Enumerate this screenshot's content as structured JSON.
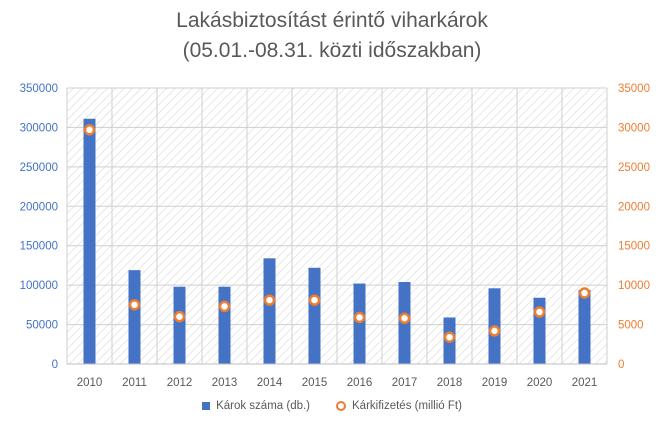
{
  "chart_data": {
    "type": "bar",
    "title_line1": "Lakásbiztosítást érintő viharkárok",
    "title_line2": "(05.01.-08.31. közti időszakban)",
    "categories": [
      "2010",
      "2011",
      "2012",
      "2013",
      "2014",
      "2015",
      "2016",
      "2017",
      "2018",
      "2019",
      "2020",
      "2021"
    ],
    "series": [
      {
        "name": "Károk száma (db.)",
        "type": "bar",
        "axis": "left",
        "color": "#4472c4",
        "values": [
          311000,
          119000,
          98000,
          98000,
          134000,
          122000,
          102000,
          104000,
          59000,
          96000,
          84000,
          94000
        ]
      },
      {
        "name": "Kárkifizetés (millió Ft)",
        "type": "scatter",
        "axis": "right",
        "color": "#ed7d31",
        "values": [
          29700,
          7500,
          6000,
          7300,
          8100,
          8100,
          5900,
          5800,
          3400,
          4200,
          6600,
          9000
        ]
      }
    ],
    "y_left": {
      "min": 0,
      "max": 350000,
      "ticks": [
        "0",
        "50000",
        "100000",
        "150000",
        "200000",
        "250000",
        "300000",
        "350000"
      ],
      "color": "#4472c4"
    },
    "y_right": {
      "min": 0,
      "max": 35000,
      "ticks": [
        "0",
        "5000",
        "10000",
        "15000",
        "20000",
        "25000",
        "30000",
        "35000"
      ],
      "color": "#ed7d31"
    },
    "grid": true,
    "legend_position": "bottom"
  }
}
